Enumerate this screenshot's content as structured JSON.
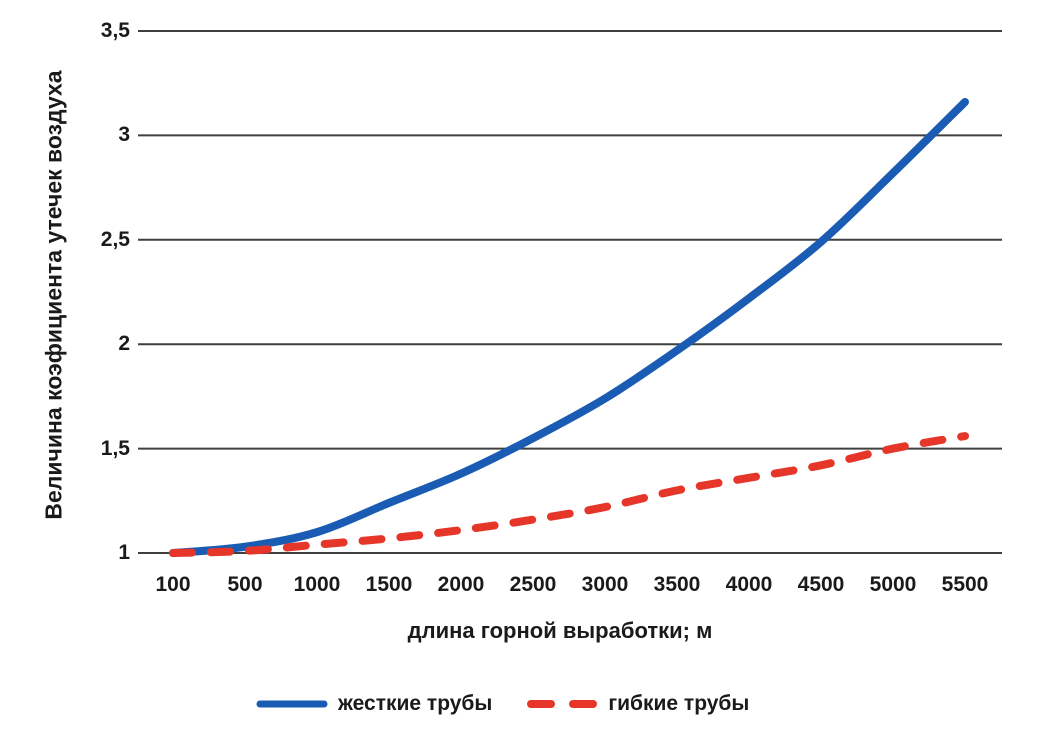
{
  "chart_data": {
    "type": "line",
    "title": "",
    "xlabel": "длина горной выработки; м",
    "ylabel": "Величина коэфициента утечек воздуха",
    "categories": [
      100,
      500,
      1000,
      1500,
      2000,
      2500,
      3000,
      3500,
      4000,
      4500,
      5000,
      5500
    ],
    "x_tick_labels": [
      "100",
      "500",
      "1000",
      "1500",
      "2000",
      "2500",
      "3000",
      "3500",
      "4000",
      "4500",
      "5000",
      "5500"
    ],
    "y_ticks": [
      {
        "value": 1.0,
        "label": "1"
      },
      {
        "value": 1.5,
        "label": "1,5"
      },
      {
        "value": 2.0,
        "label": "2"
      },
      {
        "value": 2.5,
        "label": "2,5"
      },
      {
        "value": 3.0,
        "label": "3"
      },
      {
        "value": 3.5,
        "label": "3,5"
      }
    ],
    "ylim": [
      1.0,
      3.5
    ],
    "grid": "horizontal",
    "legend_position": "bottom",
    "series": [
      {
        "name": "жесткие трубы",
        "line_style": "solid",
        "color": "#1a5cb4",
        "values": [
          1.0,
          1.03,
          1.1,
          1.24,
          1.38,
          1.55,
          1.74,
          1.97,
          2.22,
          2.49,
          2.82,
          3.16
        ]
      },
      {
        "name": "гибкие трубы",
        "line_style": "dashed",
        "color": "#e63529",
        "values": [
          1.0,
          1.01,
          1.04,
          1.07,
          1.11,
          1.16,
          1.22,
          1.3,
          1.36,
          1.42,
          1.5,
          1.56
        ]
      }
    ],
    "colors": {
      "grid": "#3f3f3f",
      "text": "#1a1a1a",
      "background": "#ffffff"
    }
  }
}
